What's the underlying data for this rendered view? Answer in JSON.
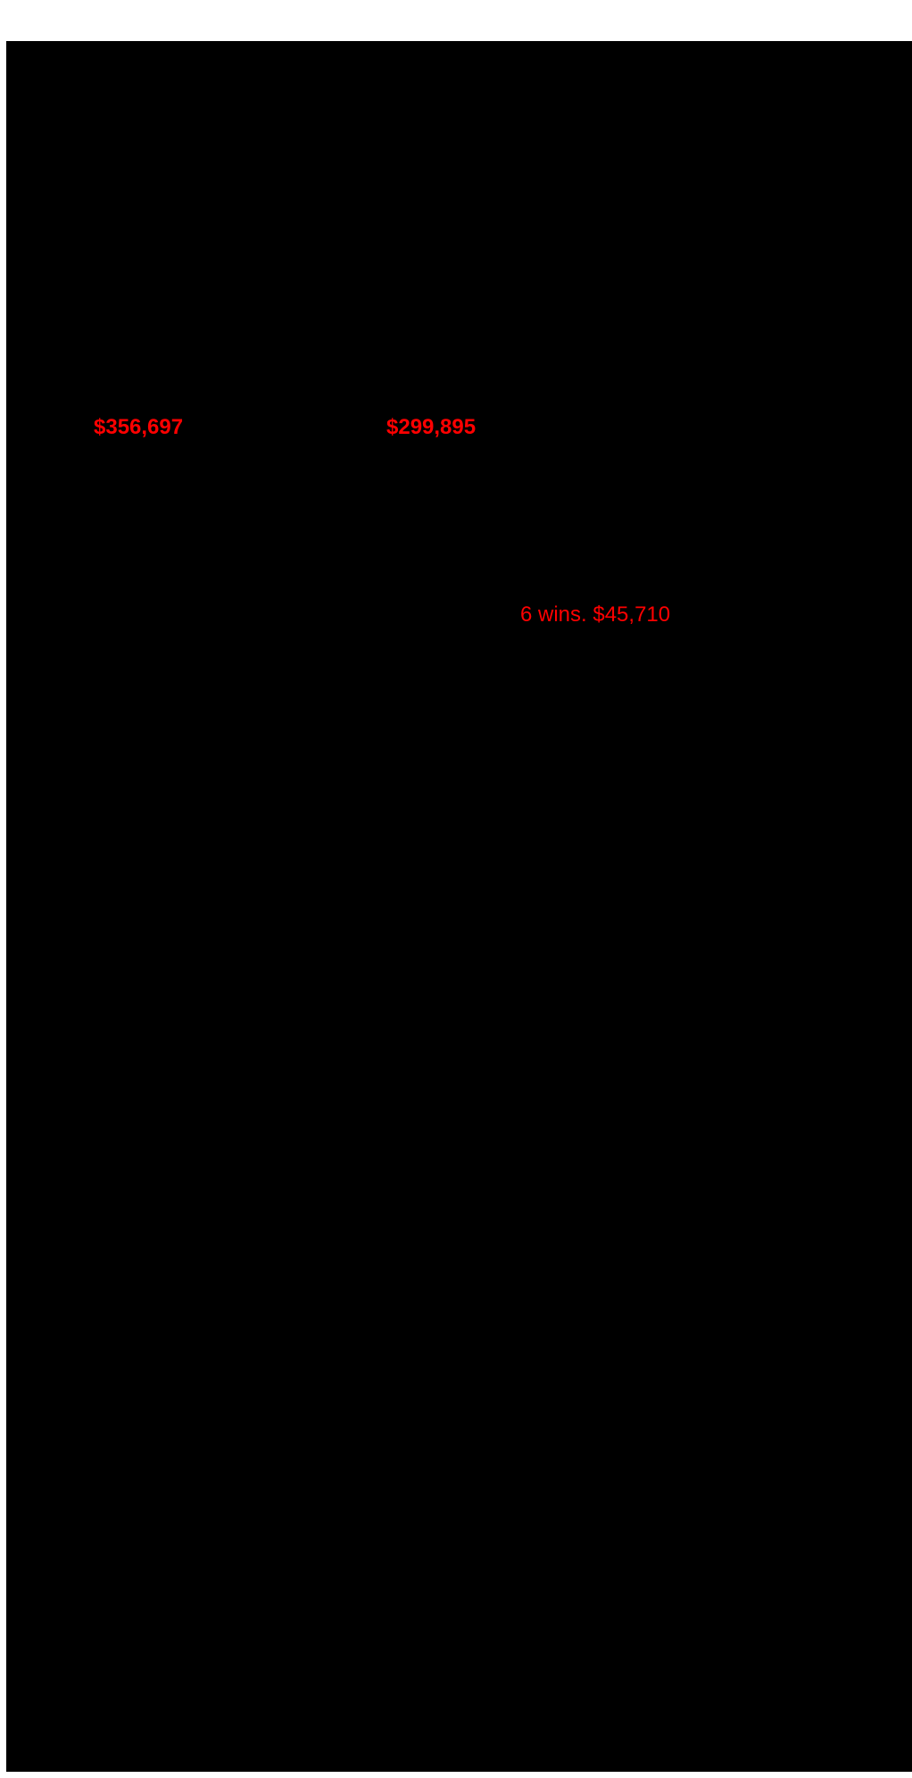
{
  "page": {
    "background_color": "#ffffff",
    "canvas_color": "#000000",
    "accent_color": "#ff0000"
  },
  "stats": {
    "left_prize_money": "$356,697",
    "right_prize_money": "$299,895",
    "wins_summary": "6 wins. $45,710"
  }
}
